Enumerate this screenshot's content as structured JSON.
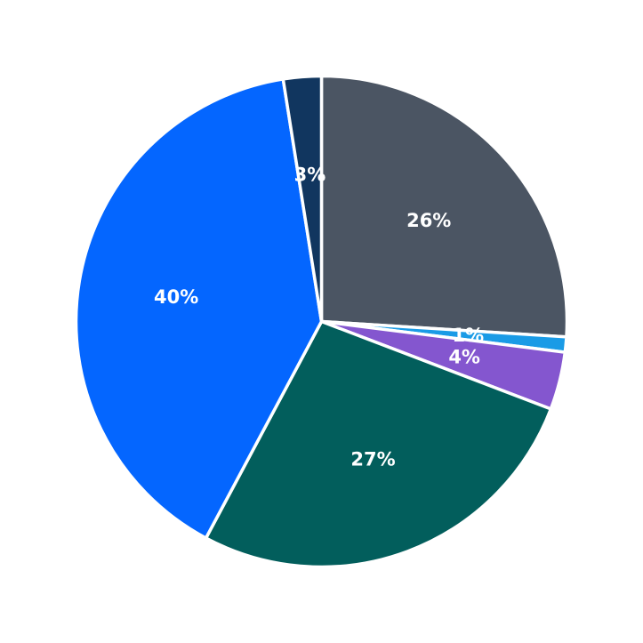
{
  "chart_data": {
    "type": "pie",
    "title": "",
    "legend": "none",
    "start_angle_deg": 90,
    "direction": "clockwise",
    "slices": [
      {
        "label_text": "26%",
        "value": 26.0,
        "color": "#4b5563"
      },
      {
        "label_text": "1%",
        "value": 1.0,
        "color": "#1a9be6"
      },
      {
        "label_text": "4%",
        "value": 3.8,
        "color": "#8456cf"
      },
      {
        "label_text": "27%",
        "value": 27.0,
        "color": "#025e5c"
      },
      {
        "label_text": "40%",
        "value": 39.7,
        "color": "#0466ff"
      },
      {
        "label_text": "3%",
        "value": 2.5,
        "color": "#11365f"
      }
    ]
  }
}
